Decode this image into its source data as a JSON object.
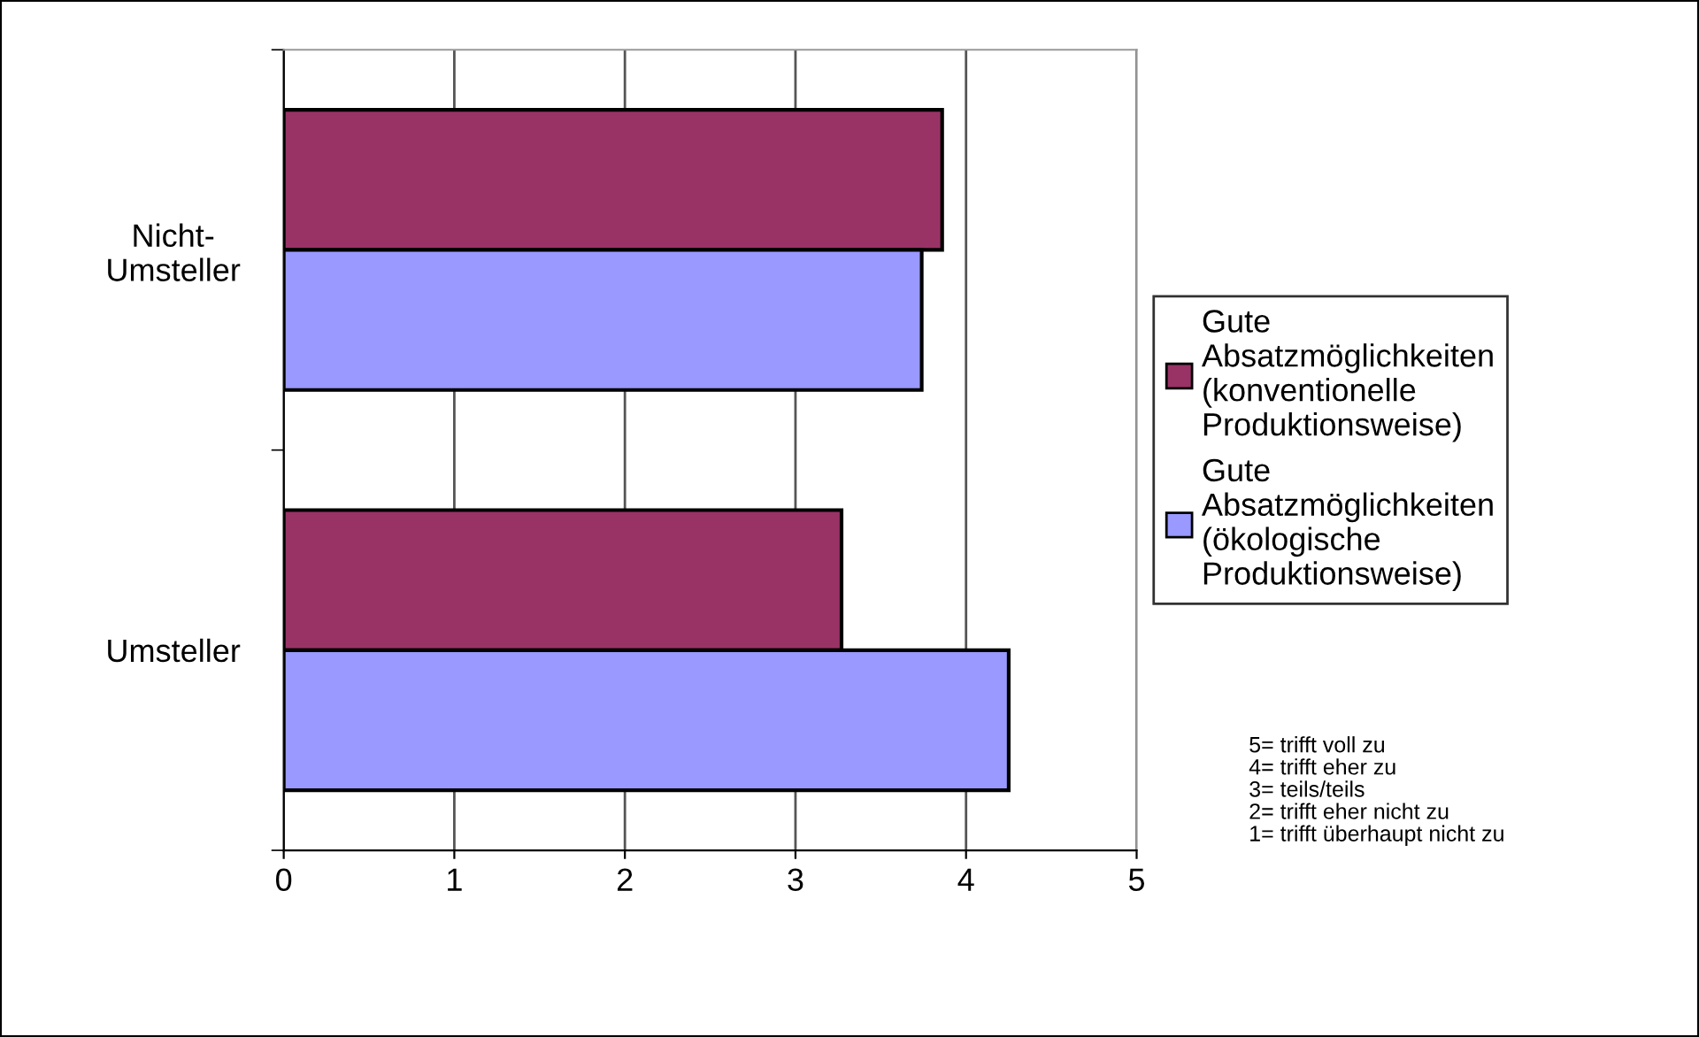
{
  "chart_data": {
    "type": "bar",
    "orientation": "horizontal",
    "categories": [
      "Nicht-\nUmsteller",
      "Umsteller"
    ],
    "series": [
      {
        "name": "Gute\nAbsatzmöglichkeiten\n(konventionelle\nProduktionsweise)",
        "color": "#993366",
        "values": [
          3.86,
          3.27
        ]
      },
      {
        "name": "Gute\nAbsatzmöglichkeiten\n(ökologische\nProduktionsweise)",
        "color": "#9999ff",
        "values": [
          3.74,
          4.25
        ]
      }
    ],
    "xlim": [
      0,
      5
    ],
    "xticks": [
      0,
      1,
      2,
      3,
      4,
      5
    ],
    "grid": "x",
    "legend": "right",
    "annotations": [
      "5= trifft voll zu\n4= trifft eher zu\n3= teils/teils\n2= trifft eher nicht zu\n1= trifft überhaupt nicht zu"
    ]
  }
}
